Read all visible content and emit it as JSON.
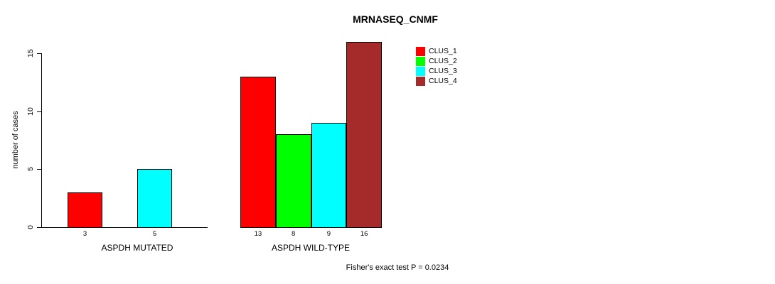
{
  "title": "MRNASEQ_CNMF",
  "footer": "Fisher's exact test P = 0.0234",
  "chart_data": {
    "type": "bar",
    "title": "MRNASEQ_CNMF",
    "xlabel": "",
    "ylabel": "number of cases",
    "ylim": [
      0,
      16
    ],
    "yticks": [
      0,
      5,
      10,
      15
    ],
    "grid": false,
    "legend_position": "top-right",
    "categories": [
      "ASPDH MUTATED",
      "ASPDH WILD-TYPE"
    ],
    "series": [
      {
        "name": "CLUS_1",
        "color": "#ff0000",
        "values": [
          3,
          13
        ]
      },
      {
        "name": "CLUS_2",
        "color": "#00ff00",
        "values": [
          0,
          8
        ]
      },
      {
        "name": "CLUS_3",
        "color": "#00ffff",
        "values": [
          5,
          9
        ]
      },
      {
        "name": "CLUS_4",
        "color": "#a52a2a",
        "values": [
          0,
          16
        ]
      }
    ],
    "bar_value_labels": [
      [
        "3",
        "5"
      ],
      [
        "13",
        "8",
        "9",
        "16"
      ]
    ],
    "annotation": "Fisher's exact test P = 0.0234",
    "colors": {
      "axis": "#000000",
      "text": "#000000",
      "background": "#ffffff"
    }
  }
}
